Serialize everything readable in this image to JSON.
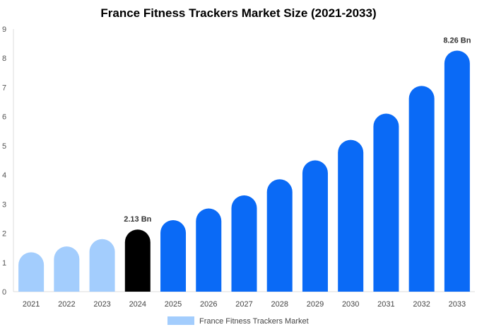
{
  "chart_data": {
    "type": "bar",
    "title": "France Fitness Trackers Market Size (2021-2033)",
    "xlabel": "",
    "ylabel": "",
    "categories": [
      "2021",
      "2022",
      "2023",
      "2024",
      "2025",
      "2026",
      "2027",
      "2028",
      "2029",
      "2030",
      "2031",
      "2032",
      "2033"
    ],
    "values": [
      1.35,
      1.55,
      1.8,
      2.13,
      2.45,
      2.85,
      3.3,
      3.85,
      4.5,
      5.2,
      6.1,
      7.05,
      8.26
    ],
    "bar_colors": [
      "#a3cdfd",
      "#a3cdfd",
      "#a3cdfd",
      "#000000",
      "#0a6af6",
      "#0a6af6",
      "#0a6af6",
      "#0a6af6",
      "#0a6af6",
      "#0a6af6",
      "#0a6af6",
      "#0a6af6",
      "#0a6af6"
    ],
    "data_labels": [
      {
        "index": 3,
        "text": "2.13 Bn"
      },
      {
        "index": 12,
        "text": "8.26 Bn"
      }
    ],
    "ylim": [
      0,
      9
    ],
    "yticks": [
      0,
      1,
      2,
      3,
      4,
      5,
      6,
      7,
      8,
      9
    ],
    "grid": false,
    "legend": {
      "placement": "bottom-center",
      "entries": [
        {
          "name": "France Fitness Trackers Market",
          "color": "#a3cdfd"
        }
      ]
    }
  }
}
